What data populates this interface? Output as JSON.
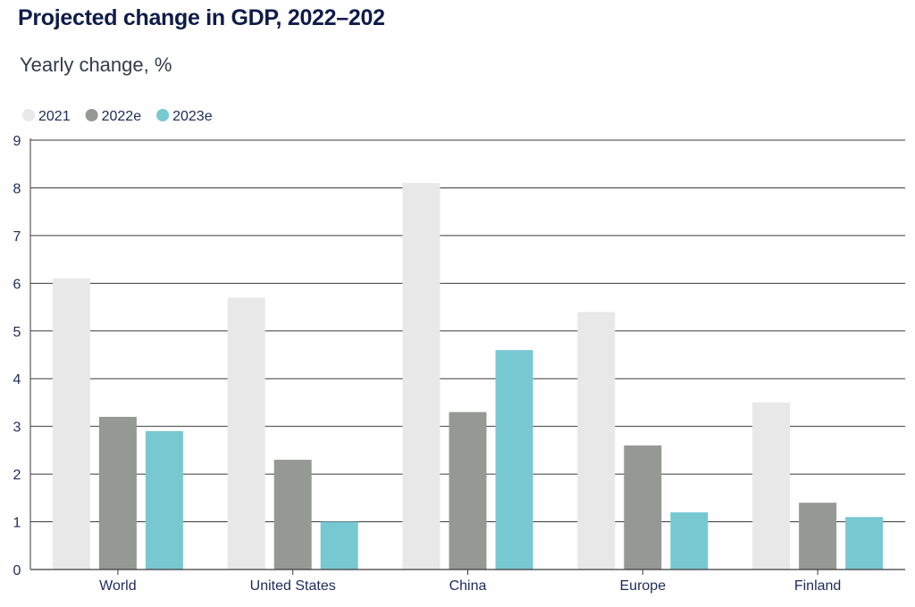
{
  "chart_data": {
    "type": "bar",
    "title": "Projected change in GDP, 2022–202",
    "subtitle": "Yearly change, %",
    "xlabel": "",
    "ylabel": "",
    "categories": [
      "World",
      "United States",
      "China",
      "Europe",
      "Finland"
    ],
    "series": [
      {
        "name": "2021",
        "color": "#e8e8e8",
        "values": [
          6.1,
          5.7,
          8.1,
          5.4,
          3.5
        ]
      },
      {
        "name": "2022e",
        "color": "#969896",
        "values": [
          3.2,
          2.3,
          3.3,
          2.6,
          1.4
        ]
      },
      {
        "name": "2023e",
        "color": "#78c8d2",
        "values": [
          2.9,
          1.0,
          4.6,
          1.2,
          1.1
        ]
      }
    ],
    "ylim": [
      0,
      9
    ],
    "yticks": [
      0,
      1,
      2,
      3,
      4,
      5,
      6,
      7,
      8,
      9
    ],
    "grid": true,
    "legend_position": "top-left"
  }
}
